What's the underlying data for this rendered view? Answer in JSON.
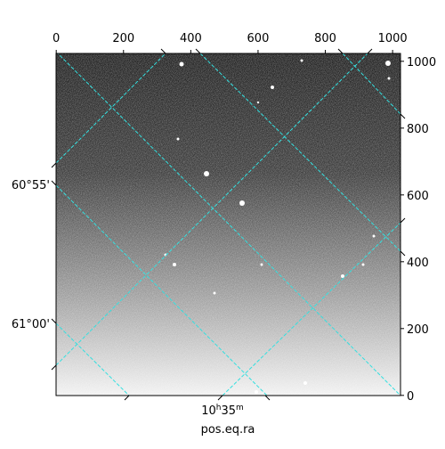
{
  "chart_data": {
    "type": "image",
    "xlim": [
      -0.5,
      1023.5
    ],
    "xticks": [
      0,
      200,
      400,
      600,
      800,
      1000
    ],
    "ylim": [
      -0.5,
      1023.5
    ],
    "yticks": [
      0,
      200,
      400,
      600,
      800,
      1000
    ],
    "dec_ticks": [
      "60°55'",
      "61°00'"
    ],
    "ra_ticks": [
      [
        "10",
        "h",
        "35",
        "m"
      ]
    ],
    "xlabel": "pos.eq.ra"
  }
}
